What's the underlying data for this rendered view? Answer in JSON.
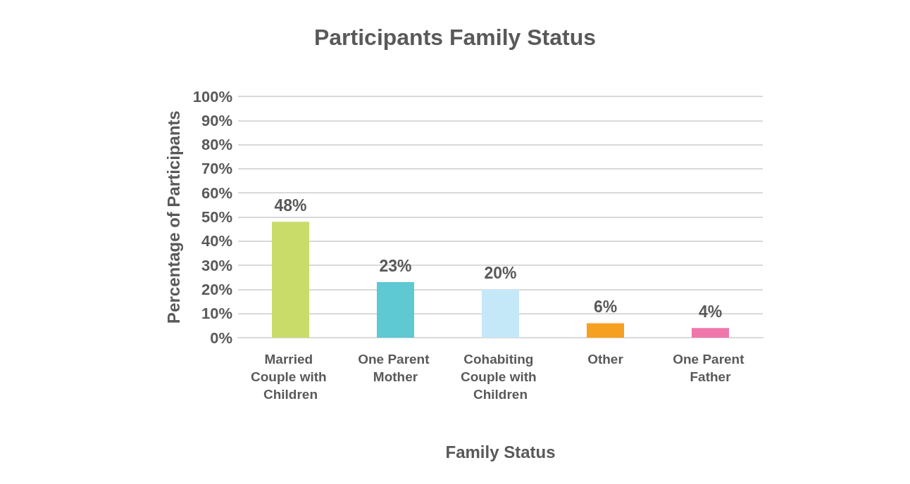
{
  "chart_data": {
    "type": "bar",
    "title": "Participants Family Status",
    "xlabel": "Family Status",
    "ylabel": "Percentage of Participants",
    "categories": [
      "Married Couple with Children",
      "One Parent Mother",
      "Cohabiting Couple with Children",
      "Other",
      "One Parent Father"
    ],
    "values": [
      48,
      23,
      20,
      6,
      4
    ],
    "value_labels": [
      "48%",
      "23%",
      "20%",
      "6%",
      "4%"
    ],
    "colors": [
      "#c9dc6a",
      "#5ec8d3",
      "#c5e8f9",
      "#f5a020",
      "#f077ab"
    ],
    "ylim": [
      0,
      100
    ],
    "yticks": [
      {
        "value": 0,
        "label": "0%"
      },
      {
        "value": 10,
        "label": "10%"
      },
      {
        "value": 20,
        "label": "20%"
      },
      {
        "value": 30,
        "label": "30%"
      },
      {
        "value": 40,
        "label": "40%"
      },
      {
        "value": 50,
        "label": "50%"
      },
      {
        "value": 60,
        "label": "60%"
      },
      {
        "value": 70,
        "label": "70%"
      },
      {
        "value": 80,
        "label": "80%"
      },
      {
        "value": 90,
        "label": "90%"
      },
      {
        "value": 100,
        "label": "100%"
      }
    ],
    "grid": "y"
  }
}
